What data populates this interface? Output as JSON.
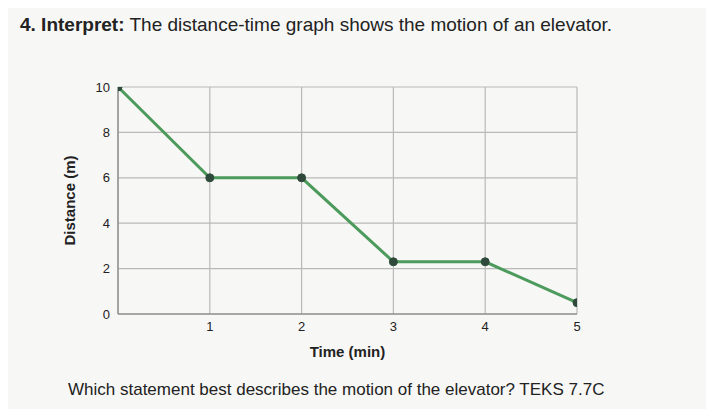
{
  "chart_data": {
    "type": "line",
    "title": "4. Interpret: The distance-time graph shows the motion of an elevator.",
    "x_label": "Time (min)",
    "y_label": "Distance (m)",
    "x": [
      0,
      1,
      2,
      3,
      4,
      5
    ],
    "values": [
      10,
      6,
      6,
      2.3,
      2.3,
      0.5
    ],
    "color": "#4c9a5c",
    "marker": "circle",
    "xlim": [
      0,
      5
    ],
    "xticks": [
      1,
      2,
      3,
      4,
      5
    ],
    "ylim": [
      0,
      10
    ],
    "yticks": [
      0,
      2,
      4,
      6,
      8,
      10
    ],
    "grid": true,
    "annotations": [
      "Which statement best describes the motion of the elevator? TEKS 7.7C"
    ]
  }
}
